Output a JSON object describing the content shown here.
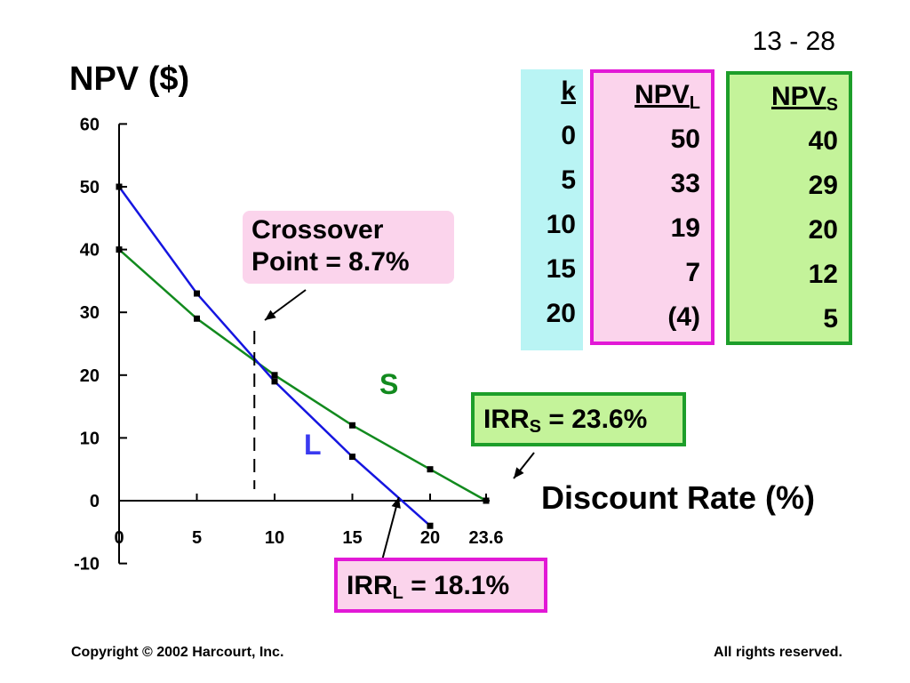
{
  "slide_number": "13 - 28",
  "footer": {
    "copyright": "Copyright © 2002 Harcourt, Inc.",
    "rights": "All rights reserved."
  },
  "colors": {
    "project_l": "#1515e0",
    "project_s": "#128a1e",
    "pink_fill": "#fbd4ec",
    "green_fill": "#c4f39a",
    "cyan_fill": "#b9f4f4"
  },
  "table": {
    "headers": {
      "k": "k",
      "npv_l_base": "NPV",
      "npv_l_sub": "L",
      "npv_s_base": "NPV",
      "npv_s_sub": "S"
    },
    "k": [
      "0",
      "5",
      "10",
      "15",
      "20"
    ],
    "npv_l": [
      "50",
      "33",
      "19",
      "7",
      "(4)"
    ],
    "npv_s": [
      "40",
      "29",
      "20",
      "12",
      "5"
    ]
  },
  "annotations": {
    "crossover_line1": "Crossover",
    "crossover_line2": "Point  =  8.7%",
    "irr_s_base": "IRR",
    "irr_s_sub": "S",
    "irr_s_value": " = 23.6%",
    "irr_l_base": "IRR",
    "irr_l_sub": "L",
    "irr_l_value": " = 18.1%"
  },
  "chart_data": {
    "type": "line",
    "ylabel": "NPV ($)",
    "xlabel": "Discount Rate (%)",
    "xlim": [
      0,
      23.6
    ],
    "ylim": [
      -10,
      60
    ],
    "x_ticks": [
      {
        "value": 0,
        "label": "0"
      },
      {
        "value": 5,
        "label": "5"
      },
      {
        "value": 10,
        "label": "10"
      },
      {
        "value": 15,
        "label": "15"
      },
      {
        "value": 20,
        "label": "20"
      },
      {
        "value": 23.6,
        "label": "23.6"
      }
    ],
    "y_ticks": [
      {
        "value": -10,
        "label": "-10"
      },
      {
        "value": 0,
        "label": "0"
      },
      {
        "value": 10,
        "label": "10"
      },
      {
        "value": 20,
        "label": "20"
      },
      {
        "value": 30,
        "label": "30"
      },
      {
        "value": 40,
        "label": "40"
      },
      {
        "value": 50,
        "label": "50"
      },
      {
        "value": 60,
        "label": "60"
      }
    ],
    "series": [
      {
        "name": "L",
        "color": "#1515e0",
        "points": [
          [
            0,
            50
          ],
          [
            5,
            33
          ],
          [
            10,
            19
          ],
          [
            15,
            7
          ],
          [
            20,
            -4
          ]
        ],
        "marker_points": [
          [
            0,
            50
          ],
          [
            5,
            33
          ],
          [
            10,
            19
          ],
          [
            15,
            7
          ],
          [
            20,
            -4
          ]
        ]
      },
      {
        "name": "S",
        "color": "#128a1e",
        "points": [
          [
            0,
            40
          ],
          [
            5,
            29
          ],
          [
            10,
            20
          ],
          [
            15,
            12
          ],
          [
            20,
            5
          ],
          [
            23.6,
            0
          ]
        ],
        "marker_points": [
          [
            0,
            40
          ],
          [
            5,
            29
          ],
          [
            10,
            20
          ],
          [
            15,
            12
          ],
          [
            20,
            5
          ],
          [
            23.6,
            0
          ]
        ]
      }
    ],
    "crossover_x": 8.7,
    "irr_l": 18.1,
    "irr_s": 23.6
  }
}
